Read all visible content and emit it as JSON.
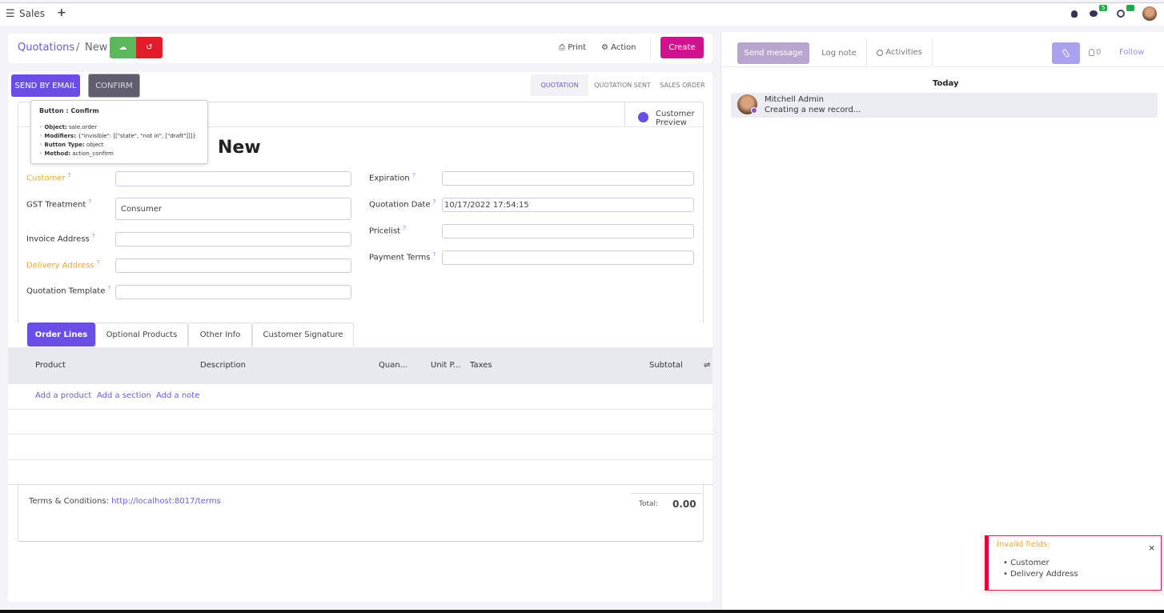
{
  "topbar": {
    "app": "Sales",
    "plus": "+",
    "messages_count": "5",
    "activities_count": "6"
  },
  "breadcrumb": {
    "parent": "Quotations",
    "separator": "/",
    "current": "New"
  },
  "control": {
    "print": "Print",
    "action": "Action",
    "create": "Create"
  },
  "header_buttons": {
    "send_email": "SEND BY EMAIL",
    "confirm": "CONFIRM"
  },
  "statusbar": [
    "QUOTATION",
    "QUOTATION SENT",
    "SALES ORDER"
  ],
  "customer_preview": "Customer Preview",
  "title": "New",
  "tooltip": {
    "title": "Button : Confirm",
    "items": [
      {
        "k": "Object:",
        "v": "sale.order"
      },
      {
        "k": "Modifiers:",
        "v": "{\"invisible\": [[\"state\", \"not in\", [\"draft\"]]]}"
      },
      {
        "k": "Button Type:",
        "v": "object"
      },
      {
        "k": "Method:",
        "v": "action_confirm"
      }
    ]
  },
  "fields_left": [
    {
      "label": "Customer",
      "value": "",
      "required": true
    },
    {
      "label": "GST Treatment",
      "value": "Consumer"
    },
    {
      "label": "Invoice Address",
      "value": ""
    },
    {
      "label": "Delivery Address",
      "value": "",
      "required": true
    },
    {
      "label": "Quotation Template",
      "value": ""
    }
  ],
  "fields_right": [
    {
      "label": "Expiration",
      "value": ""
    },
    {
      "label": "Quotation Date",
      "value": "10/17/2022 17:54:15"
    },
    {
      "label": "Pricelist",
      "value": ""
    },
    {
      "label": "Payment Terms",
      "value": ""
    }
  ],
  "help_mark": "?",
  "tabs": [
    "Order Lines",
    "Optional Products",
    "Other Info",
    "Customer Signature"
  ],
  "columns": [
    "Product",
    "Description",
    "Quan...",
    "Unit P...",
    "Taxes",
    "Subtotal"
  ],
  "add_links": [
    "Add a product",
    "Add a section",
    "Add a note"
  ],
  "terms": {
    "label": "Terms & Conditions:",
    "link": "http://localhost:8017/terms"
  },
  "total": {
    "label": "Total:",
    "value": "0.00"
  },
  "chatter": {
    "send_message": "Send message",
    "log_note": "Log note",
    "activities": "Activities",
    "followers": "0",
    "follow": "Follow",
    "today": "Today",
    "author": "Mitchell Admin",
    "message": "Creating a new record..."
  },
  "notification": {
    "title": "Invalid fields:",
    "items": [
      "Customer",
      "Delivery Address"
    ],
    "close": "×"
  },
  "colors": {
    "primary": "#6a4ee6",
    "create": "#d0128f",
    "save": "#5cb85c",
    "discard": "#e31b2b",
    "required": "#f4a63a"
  }
}
